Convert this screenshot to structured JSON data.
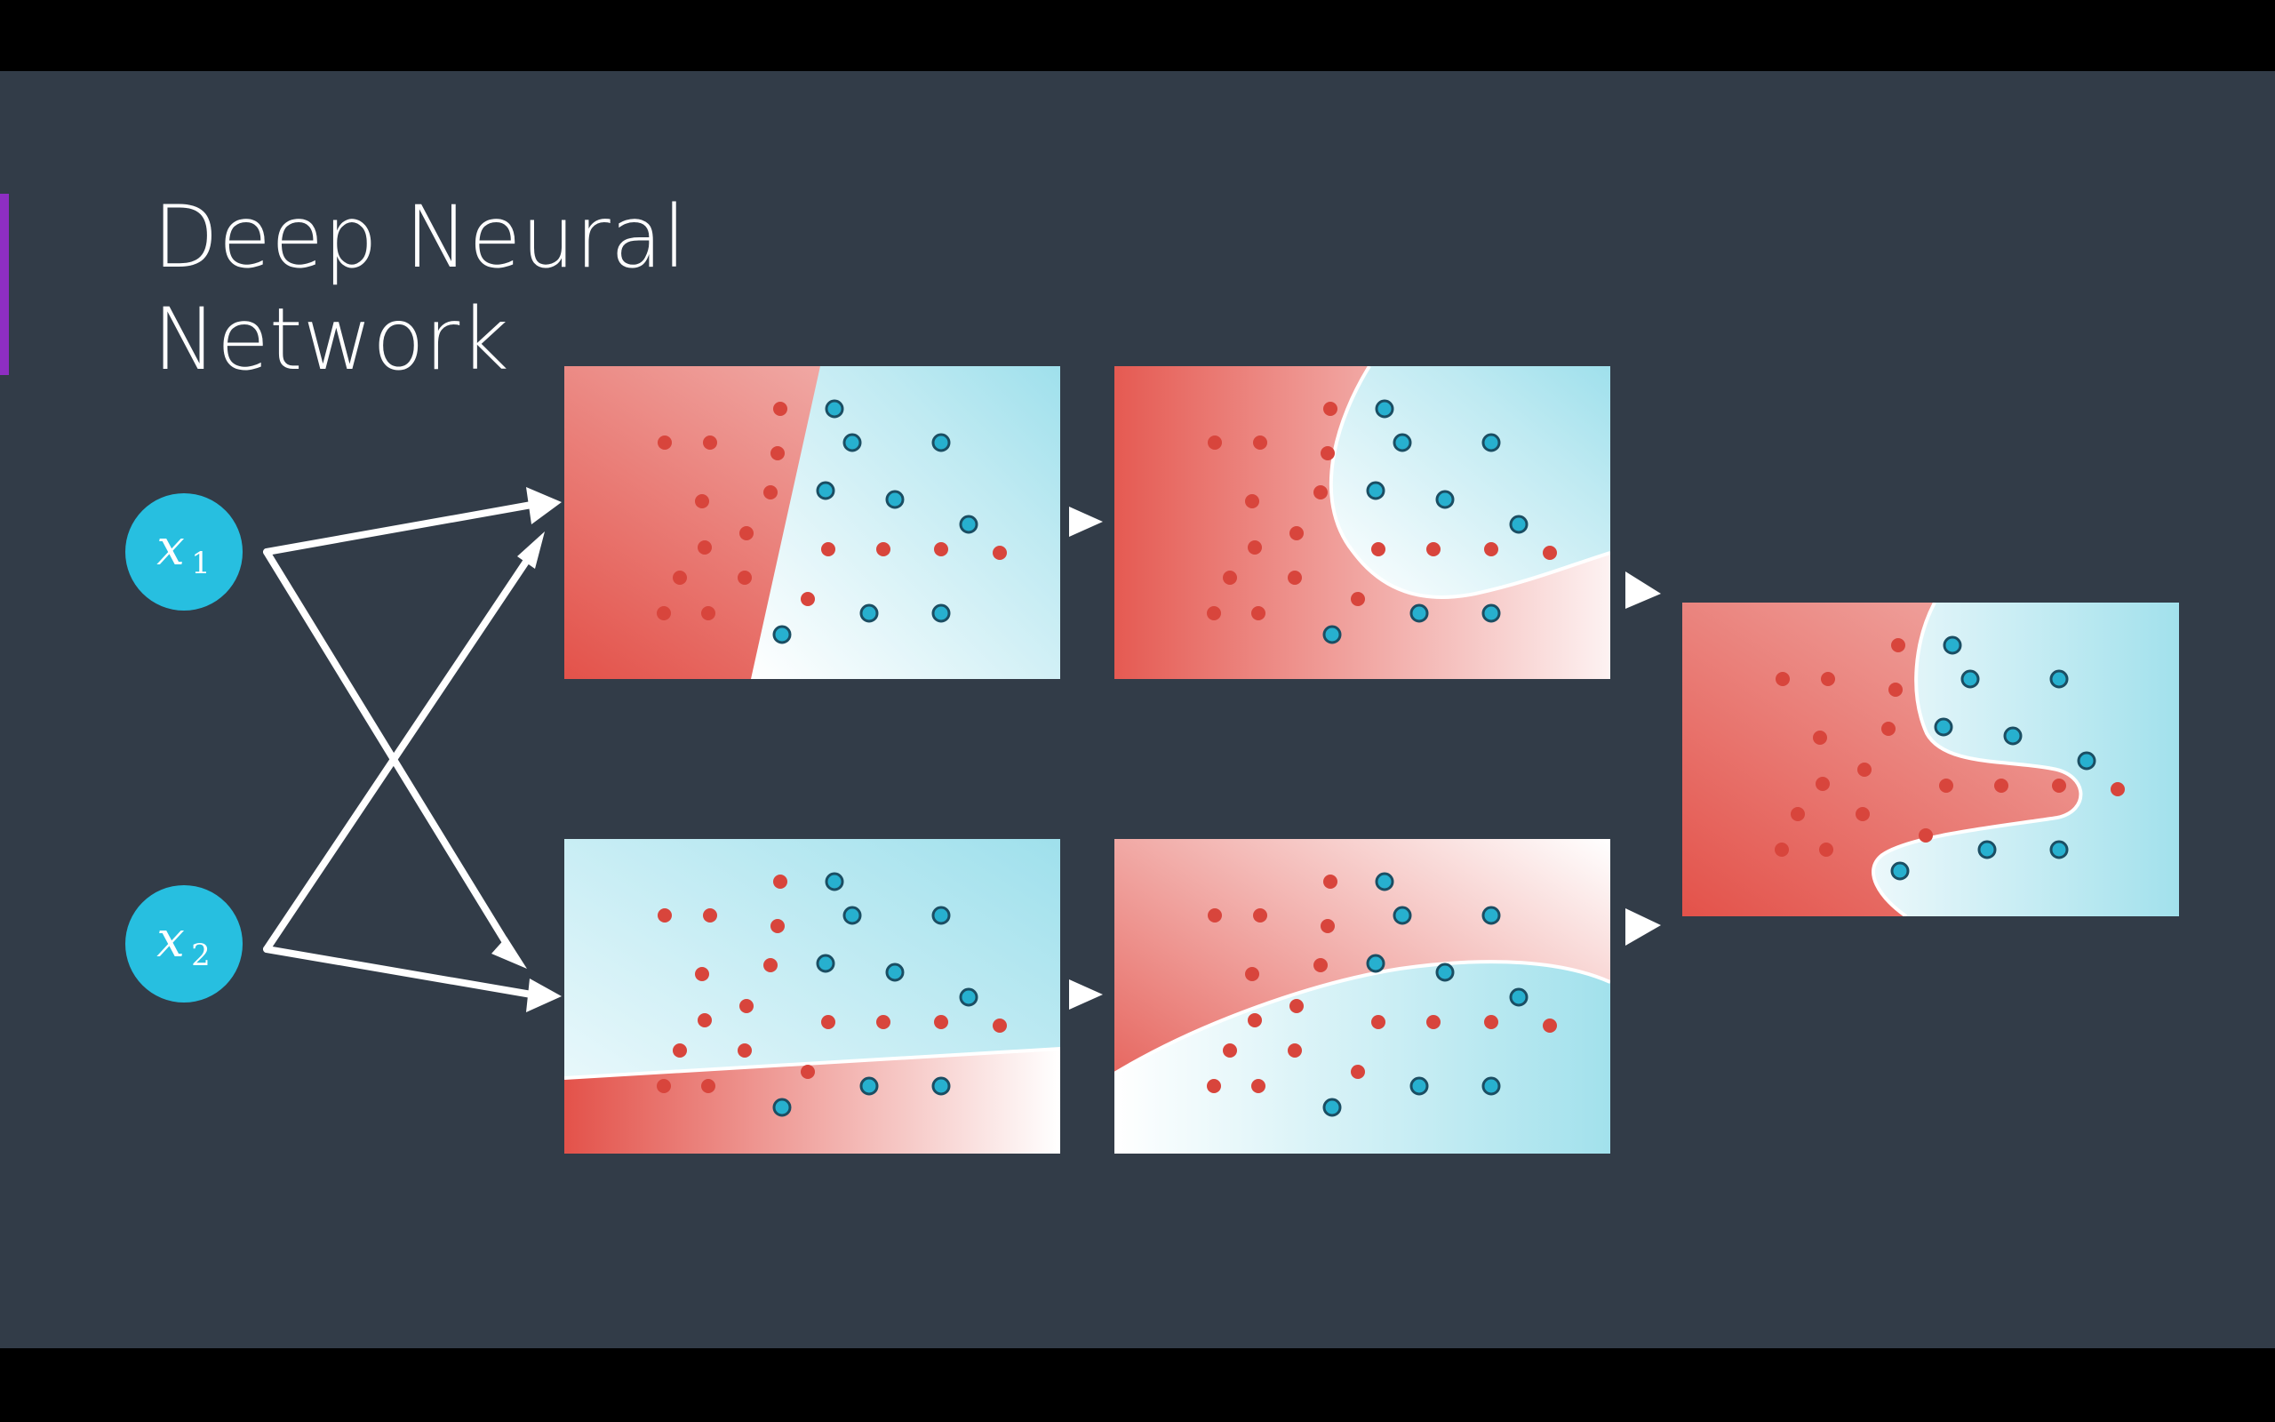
{
  "title": {
    "line1": "Deep Neural",
    "line2": "Network"
  },
  "inputs": [
    {
      "symbol": "x",
      "subscript": "1"
    },
    {
      "symbol": "x",
      "subscript": "2"
    }
  ],
  "colors": {
    "background": "#323c48",
    "accent": "#8e2ec2",
    "node": "#27bfe0",
    "red_region": "#e3524a",
    "blue_region": "#a2e1ec",
    "red_point": "#d8453c",
    "blue_point": "#27b0cf",
    "arrow": "#ffffff"
  },
  "panels": [
    {
      "id": "layer1-top",
      "boundary": "linear"
    },
    {
      "id": "layer1-bottom",
      "boundary": "linear"
    },
    {
      "id": "layer2-top",
      "boundary": "curved"
    },
    {
      "id": "layer2-bottom",
      "boundary": "curved"
    },
    {
      "id": "output",
      "boundary": "combined"
    }
  ]
}
